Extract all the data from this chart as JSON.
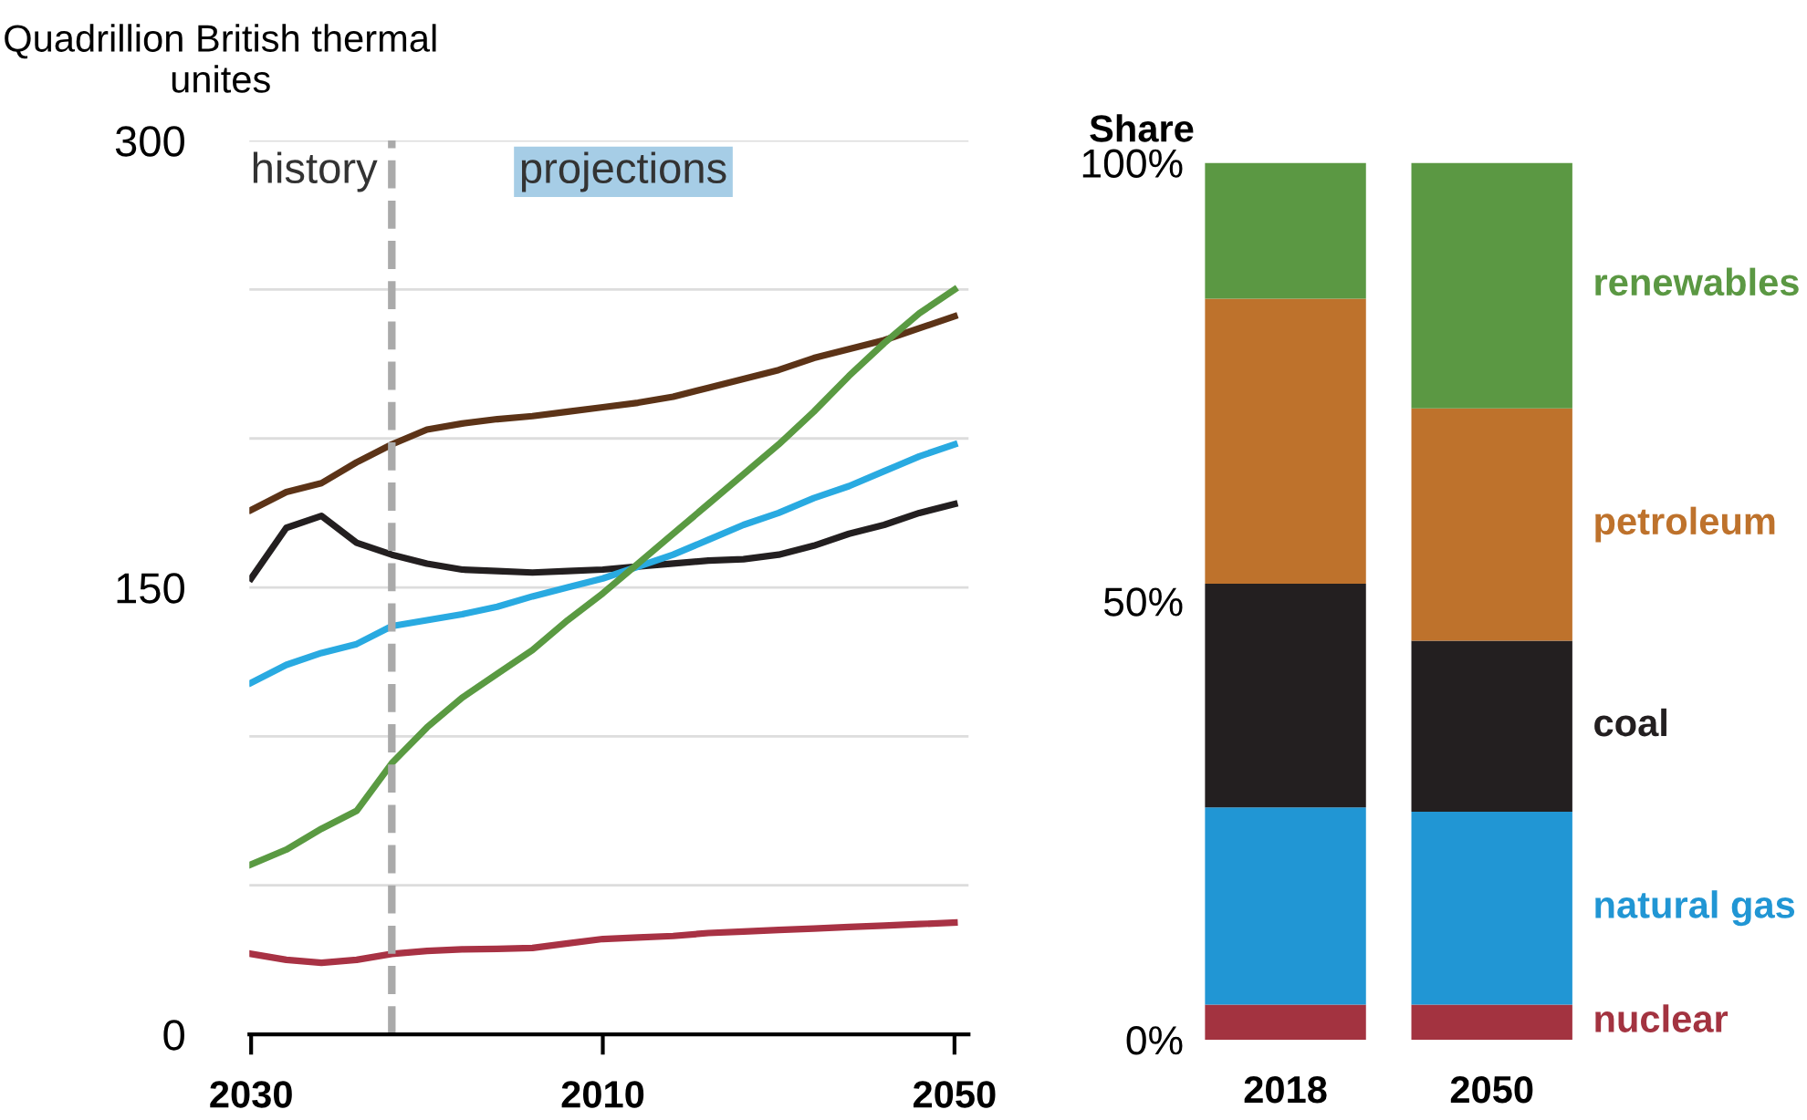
{
  "chart_data": [
    {
      "type": "line",
      "ylabel": "Quadrillion British thermal unites",
      "categories": [
        "2030",
        null,
        null,
        null,
        null,
        null,
        null,
        null,
        null,
        null,
        "2010",
        null,
        null,
        null,
        null,
        null,
        null,
        null,
        null,
        null,
        "2050"
      ],
      "ylim": [
        0,
        300
      ],
      "yticks": [
        0,
        {
          "value": 50,
          "label": null
        },
        {
          "value": 100,
          "label": null
        },
        150,
        {
          "value": 200,
          "label": null
        },
        {
          "value": 250,
          "label": null
        },
        300
      ],
      "grid": "y",
      "line_style": "solid",
      "annotations": [
        "history",
        "projections"
      ],
      "series": [
        {
          "color": "#5c3317",
          "values": [
            176,
            182,
            185,
            192,
            198,
            203,
            205,
            206.5,
            207.5,
            209,
            210.5,
            212,
            214,
            217,
            220,
            223,
            227,
            230,
            233,
            237,
            241
          ]
        },
        {
          "color": "#231f20",
          "values": [
            153,
            170,
            174,
            165,
            161,
            158,
            156,
            155.5,
            155,
            155.5,
            156,
            157,
            158,
            159,
            159.5,
            161,
            164,
            168,
            171,
            175,
            178
          ]
        },
        {
          "color": "#29aae1",
          "values": [
            118,
            124,
            128,
            131,
            137,
            139,
            141,
            143.5,
            147,
            150,
            153,
            157,
            161,
            166,
            171,
            175,
            180,
            184,
            189,
            194,
            198
          ]
        },
        {
          "color": "#5a9a42",
          "values": [
            57,
            62,
            69,
            75,
            91,
            103,
            113,
            121,
            129,
            139,
            148,
            158,
            168,
            178,
            188,
            198,
            209,
            221,
            232,
            242,
            250
          ]
        },
        {
          "color": "#a83244",
          "values": [
            27,
            25,
            24,
            25,
            27,
            28,
            28.5,
            28.7,
            29,
            30.5,
            32,
            32.5,
            33,
            34,
            34.5,
            35,
            35.5,
            36,
            36.5,
            37,
            37.5
          ]
        }
      ]
    },
    {
      "type": "bar",
      "stacked": true,
      "ylabel": "Share",
      "categories": [
        "2018",
        "2050"
      ],
      "ylim": [
        0,
        100
      ],
      "yticks": [
        {
          "value": 0,
          "label": "0%"
        },
        {
          "value": 50,
          "label": "50%"
        },
        {
          "value": 100,
          "label": "100%"
        }
      ],
      "grid": false,
      "series": [
        {
          "name": "nuclear",
          "color": "#a33340",
          "values": [
            4,
            4
          ]
        },
        {
          "name": "natural gas",
          "color": "#2196d4",
          "values": [
            22.5,
            22
          ]
        },
        {
          "name": "coal",
          "color": "#231f20",
          "values": [
            25.5,
            19.5
          ]
        },
        {
          "name": "petroleum",
          "color": "#be722c",
          "values": [
            32.5,
            26.5
          ]
        },
        {
          "name": "renewables",
          "color": "#5b9843",
          "values": [
            15.5,
            28
          ]
        }
      ]
    }
  ]
}
